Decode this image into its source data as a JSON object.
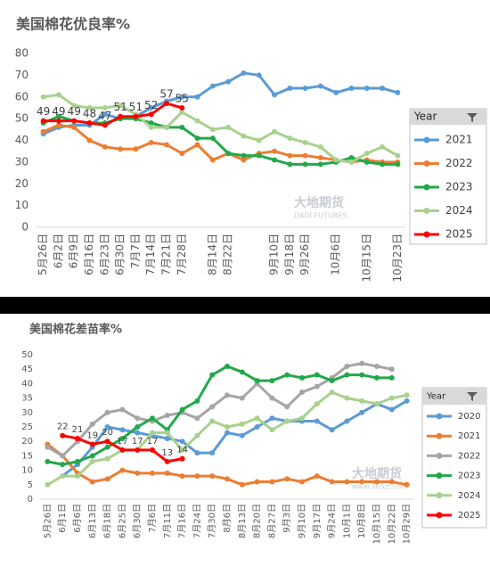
{
  "chart_data": [
    {
      "type": "line",
      "title": "美国棉花优良率%",
      "legend_title": "Year",
      "watermark": "大地期货",
      "watermark_sub": "DADI FUTURES",
      "categories": [
        "5月26日",
        "6月2日",
        "6月9日",
        "6月16日",
        "6月23日",
        "6月30日",
        "7月7日",
        "7月14日",
        "7月21日",
        "7月28日",
        null,
        "8月14日",
        "8月22日",
        null,
        null,
        "9月10日",
        "9月18日",
        "9月26日",
        null,
        "10月6日",
        null,
        "10月15日",
        null,
        "10月23日"
      ],
      "ylim": [
        0,
        80
      ],
      "yticks": [
        0,
        10,
        20,
        30,
        40,
        50,
        60,
        70,
        80
      ],
      "grid": false,
      "series": [
        {
          "name": "2021",
          "color": "#5b9bd5",
          "values": [
            43,
            46,
            47,
            47,
            52,
            50,
            51,
            55,
            58,
            60,
            60,
            65,
            67,
            71,
            70,
            61,
            64,
            64,
            65,
            62,
            64,
            64,
            64,
            62
          ]
        },
        {
          "name": "2022",
          "color": "#ed7d31",
          "values": [
            44,
            47,
            46,
            40,
            37,
            36,
            36,
            39,
            38,
            34,
            38,
            31,
            34,
            31,
            34,
            35,
            33,
            33,
            32,
            31,
            30,
            31,
            30,
            30
          ]
        },
        {
          "name": "2023",
          "color": "#22a84a",
          "values": [
            48,
            51,
            49,
            48,
            48,
            50,
            50,
            48,
            46,
            46,
            41,
            41,
            34,
            33,
            33,
            31,
            29,
            29,
            29,
            30,
            32,
            30,
            29,
            29
          ]
        },
        {
          "name": "2024",
          "color": "#a9d18e",
          "values": [
            60,
            61,
            56,
            55,
            55,
            56,
            52,
            46,
            46,
            53,
            49,
            45,
            46,
            42,
            40,
            44,
            41,
            39,
            37,
            31,
            30,
            34,
            37,
            33
          ]
        },
        {
          "name": "2025",
          "color": "#ff0000",
          "labels": true,
          "values": [
            49,
            49,
            49,
            48,
            47,
            51,
            51,
            52,
            57,
            55,
            null,
            null,
            null,
            null,
            null,
            null,
            null,
            null,
            null,
            null,
            null,
            null,
            null,
            null
          ]
        }
      ]
    },
    {
      "type": "line",
      "title": "美国棉花差苗率%",
      "legend_title": "Year",
      "watermark": "大地期货",
      "watermark_sub": "www.365jz.com",
      "categories": [
        "5月26日",
        "6月1日",
        "6月6日",
        "6月13日",
        "6月18日",
        "6月25日",
        "6月30日",
        "7月6日",
        "7月11日",
        "7月16日",
        "7月24日",
        "7月30日",
        "8月6日",
        "8月13日",
        "8月20日",
        "8月27日",
        "9月3日",
        "9月10日",
        "9月17日",
        "9月24日",
        "10月1日",
        "10月8日",
        "10月15日",
        "10月22日",
        "10月29日"
      ],
      "ylim": [
        0,
        50
      ],
      "yticks": [
        0,
        5,
        10,
        15,
        20,
        25,
        30,
        35,
        40,
        45,
        50
      ],
      "grid": false,
      "series": [
        {
          "name": "2020",
          "color": "#5b9bd5",
          "values": [
            null,
            8,
            12,
            18,
            25,
            24,
            23,
            22,
            21,
            20,
            16,
            16,
            23,
            22,
            25,
            28,
            27,
            27,
            27,
            24,
            27,
            30,
            33,
            31,
            34
          ]
        },
        {
          "name": "2021",
          "color": "#ed7d31",
          "values": [
            19,
            15,
            9,
            6,
            7,
            10,
            9,
            9,
            9,
            8,
            8,
            8,
            7,
            5,
            6,
            6,
            7,
            6,
            8,
            6,
            6,
            6,
            6,
            6,
            5
          ]
        },
        {
          "name": "2022",
          "color": "#a5a5a5",
          "values": [
            18,
            15,
            20,
            26,
            30,
            31,
            28,
            27,
            29,
            30,
            28,
            32,
            36,
            35,
            40,
            35,
            32,
            37,
            39,
            42,
            46,
            47,
            46,
            45,
            null
          ]
        },
        {
          "name": "2023",
          "color": "#22a84a",
          "values": [
            13,
            12,
            13,
            15,
            18,
            21,
            25,
            28,
            24,
            31,
            34,
            43,
            46,
            44,
            41,
            41,
            43,
            42,
            43,
            41,
            43,
            43,
            42,
            42,
            null
          ]
        },
        {
          "name": "2024",
          "color": "#a9d18e",
          "values": [
            5,
            8,
            8,
            13,
            14,
            17,
            17,
            23,
            23,
            17,
            22,
            27,
            25,
            26,
            28,
            24,
            27,
            28,
            33,
            37,
            35,
            34,
            33,
            35,
            36
          ]
        },
        {
          "name": "2025",
          "color": "#ff0000",
          "labels": true,
          "values": [
            null,
            22,
            21,
            19,
            20,
            17,
            17,
            17,
            13,
            14,
            null,
            null,
            null,
            null,
            null,
            null,
            null,
            null,
            null,
            null,
            null,
            null,
            null,
            null,
            null
          ]
        }
      ]
    }
  ]
}
